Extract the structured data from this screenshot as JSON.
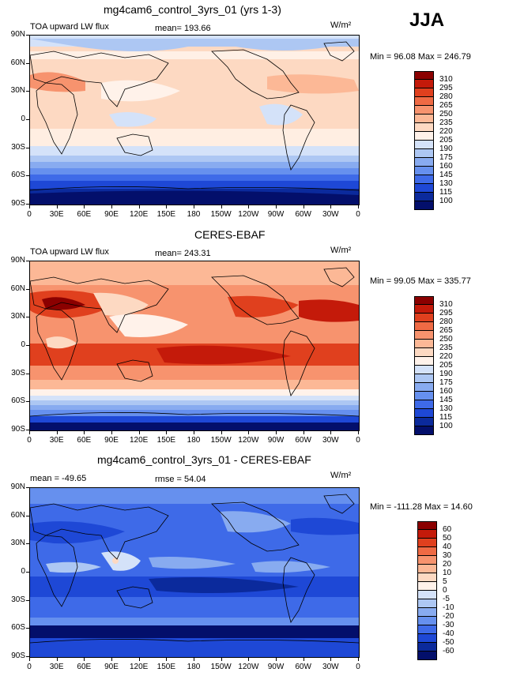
{
  "season": "JJA",
  "units": "W/m²",
  "x_ticks": [
    "0",
    "30E",
    "60E",
    "90E",
    "120E",
    "150E",
    "180",
    "150W",
    "120W",
    "90W",
    "60W",
    "30W",
    "0"
  ],
  "y_ticks": [
    "90N",
    "60N",
    "30N",
    "0",
    "30S",
    "60S",
    "90S"
  ],
  "panels": [
    {
      "title": "mg4cam6_control_3yrs_01 (yrs 1-3)",
      "left_label": "TOA upward LW flux",
      "mean_label": "mean= 193.66",
      "minmax": "Min =   96.08  Max =  246.79",
      "levels": [
        "310",
        "295",
        "280",
        "265",
        "250",
        "235",
        "220",
        "205",
        "190",
        "175",
        "160",
        "145",
        "130",
        "115",
        "100"
      ],
      "colors": [
        "#8b0000",
        "#c41a0a",
        "#e0401e",
        "#ef6a44",
        "#f7936e",
        "#fcb896",
        "#fdd9c2",
        "#fff2ea",
        "#d4e2f9",
        "#adc7f3",
        "#88abf0",
        "#6690ee",
        "#3e6ae8",
        "#1e48d6",
        "#0b2a9c",
        "#030f6b"
      ]
    },
    {
      "title": "CERES-EBAF",
      "left_label": "TOA upward LW flux",
      "mean_label": "mean= 243.31",
      "minmax": "Min =   99.05  Max =  335.77",
      "levels": [
        "310",
        "295",
        "280",
        "265",
        "250",
        "235",
        "220",
        "205",
        "190",
        "175",
        "160",
        "145",
        "130",
        "115",
        "100"
      ],
      "colors": [
        "#8b0000",
        "#c41a0a",
        "#e0401e",
        "#ef6a44",
        "#f7936e",
        "#fcb896",
        "#fdd9c2",
        "#fff2ea",
        "#d4e2f9",
        "#adc7f3",
        "#88abf0",
        "#6690ee",
        "#3e6ae8",
        "#1e48d6",
        "#0b2a9c",
        "#030f6b"
      ]
    },
    {
      "title": "mg4cam6_control_3yrs_01 - CERES-EBAF",
      "left_label": "mean = -49.65",
      "mean_label": "rmse =  54.04",
      "minmax": "Min = -111.28  Max =   14.60",
      "levels": [
        "60",
        "50",
        "40",
        "30",
        "20",
        "10",
        "5",
        "0",
        "-5",
        "-10",
        "-20",
        "-30",
        "-40",
        "-50",
        "-60"
      ],
      "colors": [
        "#8b0000",
        "#c41a0a",
        "#e0401e",
        "#ef6a44",
        "#f7936e",
        "#fcb896",
        "#fdd9c2",
        "#fff2ea",
        "#d4e2f9",
        "#adc7f3",
        "#88abf0",
        "#6690ee",
        "#3e6ae8",
        "#1e48d6",
        "#0b2a9c",
        "#030f6b"
      ]
    }
  ]
}
